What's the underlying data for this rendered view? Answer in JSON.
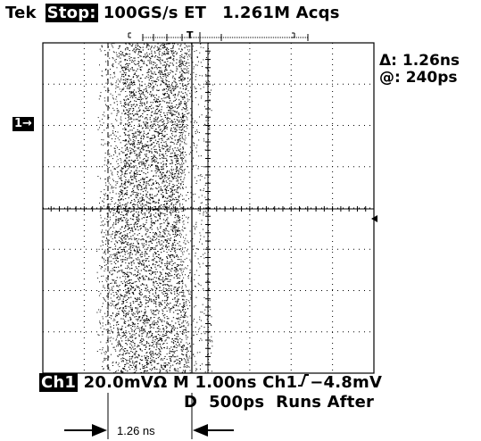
{
  "top": {
    "brand": "Tek",
    "state": "Stop:",
    "rate": "100GS/s ET",
    "acqs": "1.261M Acqs"
  },
  "readout": {
    "delta": "Δ: 1.26ns",
    "at": "@: 240ps"
  },
  "channel_marker": "1→",
  "bottom": {
    "channel": "Ch1",
    "scale": "20.0mVΩ",
    "m_time": "M 1.00ns",
    "trigger_src": "Ch1",
    "trigger_level": "−4.8mV",
    "d_line": "D  500ps  Runs After"
  },
  "annotation": {
    "measure": "1.26 ns"
  },
  "colors": {
    "trace": "#000000",
    "grid": "#000000",
    "background": "#ffffff"
  }
}
